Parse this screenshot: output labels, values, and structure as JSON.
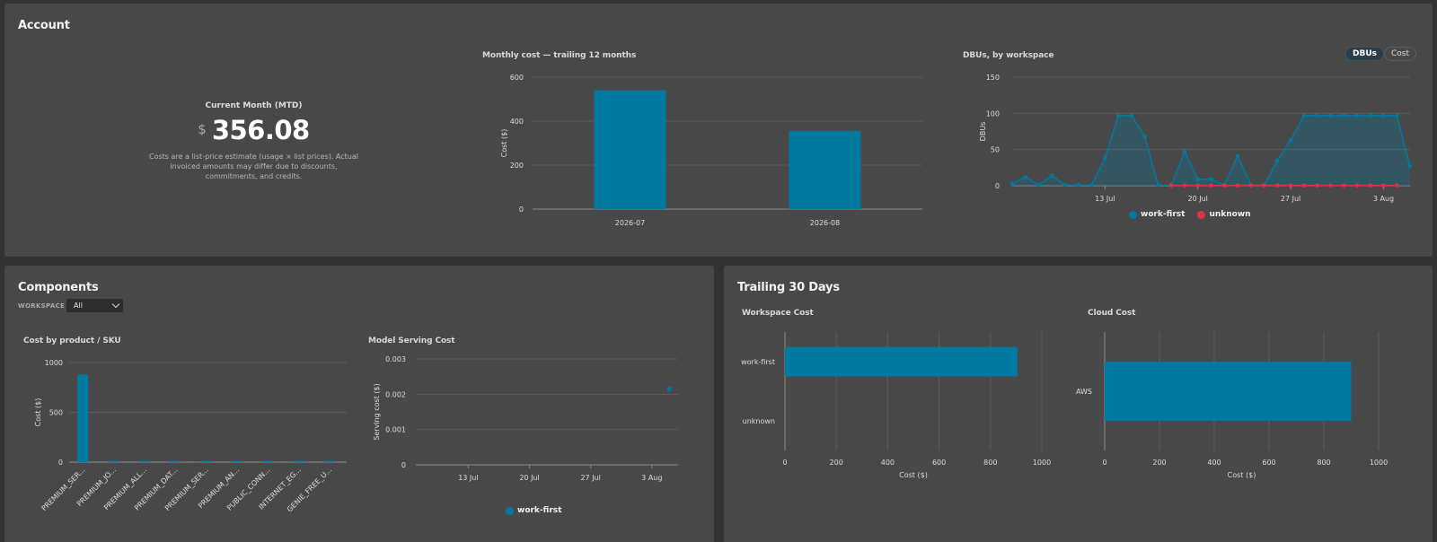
{
  "colors": {
    "primary": "#0079a1",
    "secondary": "#d9363e"
  },
  "account": {
    "title": "Account",
    "kpi": {
      "label": "Current Month (MTD)",
      "currency": "$",
      "value": "356.08",
      "note": "Costs are a list-price estimate (usage × list prices). Actual invoiced amounts may differ due to discounts, commitments, and credits."
    },
    "toggle": {
      "dbus": "DBUs",
      "cost": "Cost",
      "selected": "DBUs"
    }
  },
  "components": {
    "title": "Components",
    "filter": {
      "label": "WORKSPACE",
      "value": "All"
    }
  },
  "trailing": {
    "title": "Trailing 30 Days"
  },
  "chart_data": [
    {
      "id": "monthly",
      "type": "bar",
      "title": "Monthly cost — trailing 12 months",
      "ylabel": "Cost ($)",
      "xlabel": "",
      "categories": [
        "2026-07",
        "2026-08"
      ],
      "values": [
        540,
        356.08
      ],
      "ylim": [
        0,
        600
      ],
      "yticks": [
        0,
        200,
        400,
        600
      ],
      "grid": true
    },
    {
      "id": "dbus",
      "type": "area",
      "title": "DBUs, by workspace",
      "ylabel": "DBUs",
      "xlabel": "",
      "x": [
        "2026-07-06",
        "2026-07-07",
        "2026-07-08",
        "2026-07-09",
        "2026-07-10",
        "2026-07-11",
        "2026-07-12",
        "2026-07-13",
        "2026-07-14",
        "2026-07-15",
        "2026-07-16",
        "2026-07-17",
        "2026-07-18",
        "2026-07-19",
        "2026-07-20",
        "2026-07-21",
        "2026-07-22",
        "2026-07-23",
        "2026-07-24",
        "2026-07-25",
        "2026-07-26",
        "2026-07-27",
        "2026-07-28",
        "2026-07-29",
        "2026-07-30",
        "2026-07-31",
        "2026-08-01",
        "2026-08-02",
        "2026-08-03",
        "2026-08-04",
        "2026-08-05"
      ],
      "xticks": [
        {
          "date": "2026-07-13",
          "label": "13 Jul"
        },
        {
          "date": "2026-07-20",
          "label": "20 Jul"
        },
        {
          "date": "2026-07-27",
          "label": "27 Jul"
        },
        {
          "date": "2026-08-03",
          "label": "3 Aug"
        }
      ],
      "ylim": [
        0,
        150
      ],
      "yticks": [
        0,
        50,
        100,
        150
      ],
      "legend": "bottom",
      "series": [
        {
          "name": "work-first",
          "color": "#0079a1",
          "values": [
            3,
            12,
            1,
            14,
            1,
            1,
            1,
            38,
            97,
            97,
            68,
            1,
            1,
            47,
            9,
            9,
            1,
            41,
            1,
            1,
            35,
            63,
            97,
            97,
            97,
            97,
            97,
            97,
            97,
            97,
            27
          ]
        },
        {
          "name": "unknown",
          "color": "#d9363e",
          "values": [
            null,
            null,
            null,
            null,
            null,
            null,
            null,
            null,
            null,
            null,
            null,
            null,
            0.5,
            0.5,
            0.5,
            0.5,
            0.5,
            0.5,
            0.5,
            0.5,
            0.5,
            0.5,
            0.5,
            0.5,
            0.5,
            0.5,
            0.5,
            0.5,
            0.5,
            0.5,
            null
          ]
        }
      ]
    },
    {
      "id": "sku",
      "type": "bar",
      "title": "Cost by product / SKU",
      "ylabel": "Cost ($)",
      "xlabel": "",
      "categories": [
        "PREMIUM_SER...",
        "PREMIUM_JO...",
        "PREMIUM_ALL...",
        "PREMIUM_DAT...",
        "PREMIUM_SER...",
        "PREMIUM_AN...",
        "PUBLIC_CONN...",
        "INTERNET_EG...",
        "GENIE_FREE_U..."
      ],
      "values": [
        880,
        5,
        4,
        3,
        3,
        2,
        2,
        2,
        1
      ],
      "ylim": [
        0,
        1000
      ],
      "yticks": [
        0,
        500,
        1000
      ],
      "grid": true
    },
    {
      "id": "serving",
      "type": "scatter",
      "title": "Model Serving Cost",
      "ylabel": "Serving cost ($)",
      "xlabel": "",
      "xlim": [
        "2026-07-07",
        "2026-08-06"
      ],
      "xticks": [
        {
          "date": "2026-07-13",
          "label": "13 Jul"
        },
        {
          "date": "2026-07-20",
          "label": "20 Jul"
        },
        {
          "date": "2026-07-27",
          "label": "27 Jul"
        },
        {
          "date": "2026-08-03",
          "label": "3 Aug"
        }
      ],
      "ylim": [
        0,
        0.003
      ],
      "yticks": [
        0,
        0.001,
        0.002,
        0.003
      ],
      "legend": "bottom",
      "series": [
        {
          "name": "work-first",
          "points": [
            {
              "x": "2026-08-05",
              "y": 0.00215
            }
          ]
        }
      ]
    },
    {
      "id": "workspace",
      "type": "bar",
      "orientation": "horizontal",
      "title": "Workspace Cost",
      "xlabel": "Cost ($)",
      "ylabel": "",
      "categories": [
        "work-first",
        "unknown"
      ],
      "values": [
        905,
        0
      ],
      "xlim": [
        0,
        1000
      ],
      "xticks": [
        0,
        200,
        400,
        600,
        800,
        1000
      ],
      "grid": true
    },
    {
      "id": "cloud",
      "type": "bar",
      "orientation": "horizontal",
      "title": "Cloud Cost",
      "xlabel": "Cost ($)",
      "ylabel": "",
      "categories": [
        "AWS"
      ],
      "values": [
        900
      ],
      "xlim": [
        0,
        1000
      ],
      "xticks": [
        0,
        200,
        400,
        600,
        800,
        1000
      ],
      "grid": true
    }
  ]
}
